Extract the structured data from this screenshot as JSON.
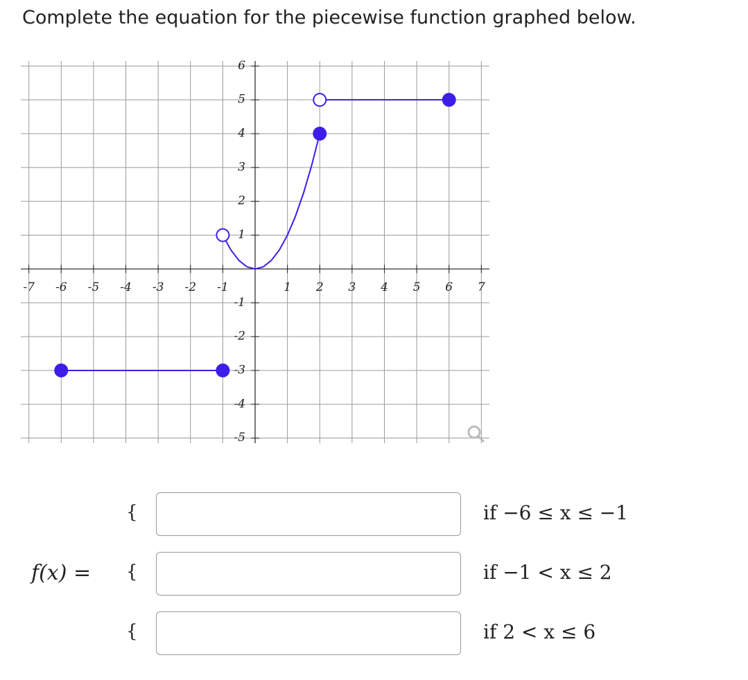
{
  "question": "Complete the equation for the piecewise function graphed below.",
  "chart_data": {
    "type": "line",
    "xlim": [
      -7.25,
      7.25
    ],
    "ylim": [
      -5.15,
      6.15
    ],
    "xticks": [
      -7,
      -6,
      -5,
      -4,
      -3,
      -2,
      -1,
      1,
      2,
      3,
      4,
      5,
      6,
      7
    ],
    "yticks": [
      -5,
      -4,
      -3,
      -2,
      -1,
      1,
      2,
      3,
      4,
      5,
      6
    ],
    "grid": true,
    "series": [
      {
        "color": "#3c1ee8",
        "x": [
          -6,
          -1
        ],
        "values": [
          -3,
          -3
        ],
        "endpoints": [
          "filled",
          "filled"
        ]
      },
      {
        "color": "#3c1ee8",
        "x": [
          -1,
          -0.75,
          -0.5,
          -0.25,
          0,
          0.25,
          0.5,
          0.75,
          1,
          1.25,
          1.5,
          1.75,
          2
        ],
        "values": [
          1,
          0.5625,
          0.25,
          0.0625,
          0,
          0.0625,
          0.25,
          0.5625,
          1,
          1.5625,
          2.25,
          3.0625,
          4
        ],
        "endpoints": [
          "open",
          "filled"
        ]
      },
      {
        "color": "#3c1ee8",
        "x": [
          2,
          6
        ],
        "values": [
          5,
          5
        ],
        "endpoints": [
          "open",
          "filled"
        ]
      }
    ]
  },
  "form": {
    "label": "f(x) =",
    "rows": [
      {
        "brace": "{",
        "condition": "if −6 ≤ x ≤ −1"
      },
      {
        "brace": "{",
        "condition": "if −1 < x ≤ 2"
      },
      {
        "brace": "{",
        "condition": "if 2 < x ≤ 6"
      }
    ]
  }
}
